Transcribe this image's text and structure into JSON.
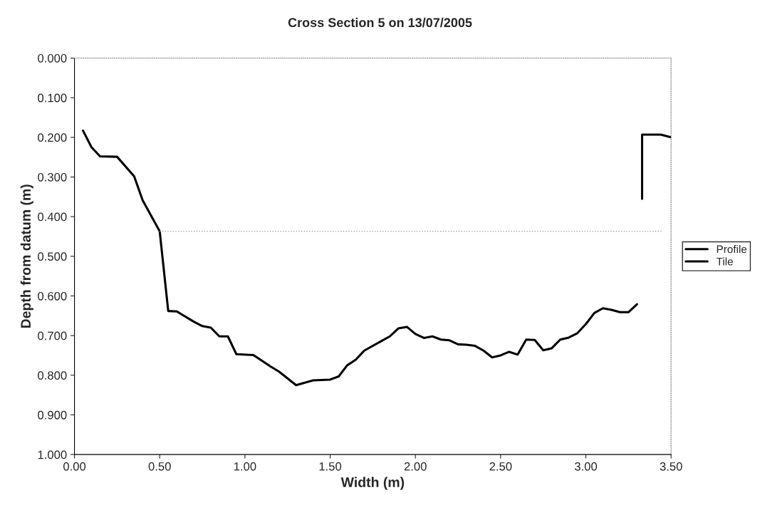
{
  "chart_data": {
    "type": "line",
    "title": "Cross Section 5 on 13/07/2005",
    "xlabel": "Width (m)",
    "ylabel": "Depth from datum (m)",
    "series": [
      {
        "name": "Profile",
        "color": "#000000",
        "x": [
          0.05,
          0.1,
          0.15,
          0.25,
          0.35,
          0.4,
          0.5,
          0.55,
          0.6,
          0.7,
          0.75,
          0.8,
          0.85,
          0.9,
          0.95,
          1.05,
          1.15,
          1.2,
          1.3,
          1.4,
          1.5,
          1.55,
          1.6,
          1.65,
          1.7,
          1.8,
          1.85,
          1.9,
          1.95,
          2.0,
          2.05,
          2.1,
          2.15,
          2.2,
          2.25,
          2.3,
          2.35,
          2.4,
          2.45,
          2.5,
          2.55,
          2.6,
          2.65,
          2.7,
          2.75,
          2.8,
          2.85,
          2.9,
          2.95,
          3.0,
          3.05,
          3.1,
          3.15,
          3.2,
          3.25,
          3.3
        ],
        "values": [
          0.183,
          0.225,
          0.248,
          0.249,
          0.298,
          0.359,
          0.437,
          0.638,
          0.639,
          0.665,
          0.676,
          0.68,
          0.702,
          0.702,
          0.747,
          0.749,
          0.778,
          0.791,
          0.825,
          0.813,
          0.811,
          0.803,
          0.775,
          0.761,
          0.738,
          0.714,
          0.702,
          0.682,
          0.678,
          0.696,
          0.706,
          0.702,
          0.71,
          0.712,
          0.722,
          0.723,
          0.726,
          0.738,
          0.755,
          0.75,
          0.741,
          0.748,
          0.71,
          0.711,
          0.737,
          0.732,
          0.71,
          0.705,
          0.694,
          0.671,
          0.643,
          0.631,
          0.635,
          0.641,
          0.641,
          0.621
        ]
      },
      {
        "name": "Tile",
        "color": "#000000",
        "x": [
          3.33,
          3.33,
          3.44,
          3.5
        ],
        "values": [
          0.355,
          0.193,
          0.193,
          0.2
        ]
      },
      {
        "color": "#aaaaaa",
        "line_style": "dotted",
        "x": [
          0.5,
          3.45
        ],
        "values": [
          0.437,
          0.437
        ]
      }
    ],
    "xlim": [
      0,
      3.5
    ],
    "xticks": [
      {
        "value": 0,
        "label": "0.00"
      },
      {
        "value": 0.5,
        "label": "0.50"
      },
      {
        "value": 1,
        "label": "1.00"
      },
      {
        "value": 1.5,
        "label": "1.50"
      },
      {
        "value": 2,
        "label": "2.00"
      },
      {
        "value": 2.5,
        "label": "2.50"
      },
      {
        "value": 3,
        "label": "3.00"
      },
      {
        "value": 3.5,
        "label": "3.50"
      }
    ],
    "ylim": [
      1.0,
      0.0
    ],
    "yticks": [
      {
        "value": 0,
        "label": "0.000"
      },
      {
        "value": 0.1,
        "label": "0.100"
      },
      {
        "value": 0.2,
        "label": "0.200"
      },
      {
        "value": 0.3,
        "label": "0.300"
      },
      {
        "value": 0.4,
        "label": "0.400"
      },
      {
        "value": 0.5,
        "label": "0.500"
      },
      {
        "value": 0.6,
        "label": "0.600"
      },
      {
        "value": 0.7,
        "label": "0.700"
      },
      {
        "value": 0.8,
        "label": "0.800"
      },
      {
        "value": 0.9,
        "label": "0.900"
      },
      {
        "value": 1.0,
        "label": "1.000"
      }
    ],
    "legend": "right",
    "grid": false,
    "marker": "none",
    "line_style": "solid"
  }
}
